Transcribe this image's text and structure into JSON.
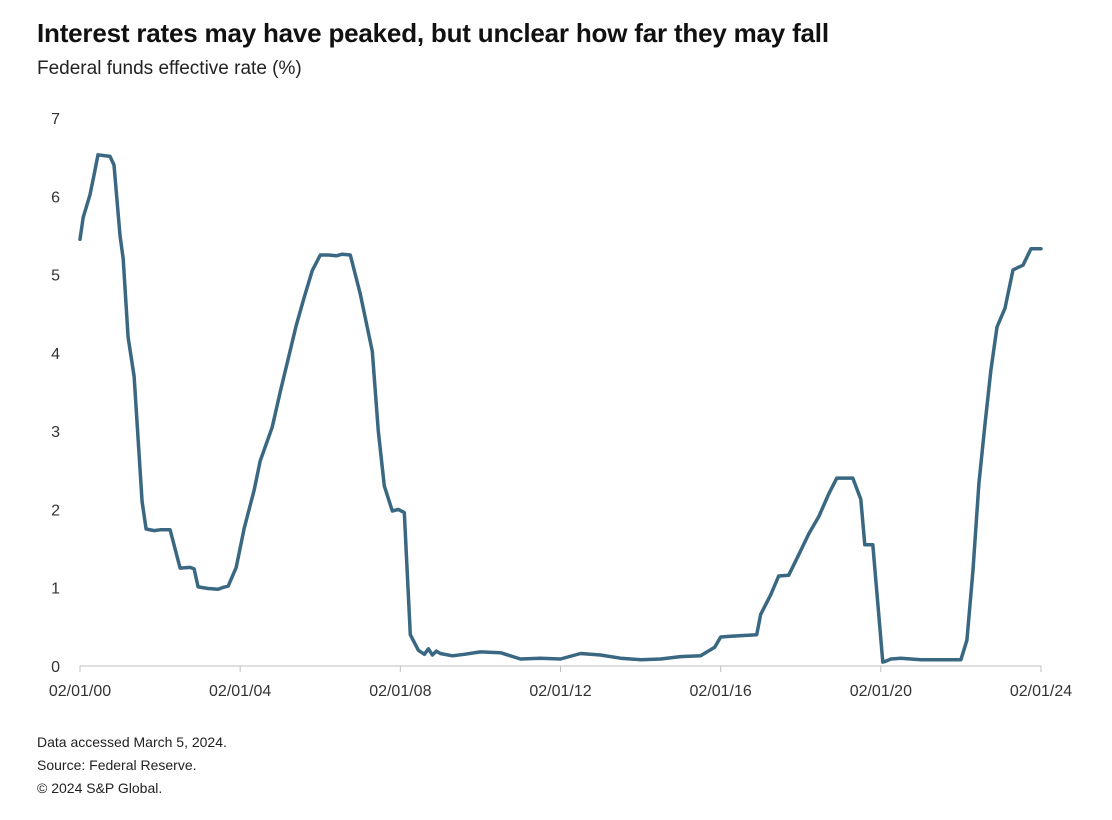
{
  "chart_data": {
    "type": "line",
    "title": "Interest rates may have peaked, but unclear how far they may fall",
    "subtitle": "Federal funds effective rate (%)",
    "xlabel": "",
    "ylabel": "Federal funds effective rate (%)",
    "ylim": [
      0,
      7
    ],
    "xlim": [
      2000.0,
      2024.0
    ],
    "yticks": [
      "0",
      "1",
      "2",
      "3",
      "4",
      "5",
      "6",
      "7"
    ],
    "xticks": [
      {
        "x": 2000.0,
        "label": "02/01/00"
      },
      {
        "x": 2004.0,
        "label": "02/01/04"
      },
      {
        "x": 2008.0,
        "label": "02/01/08"
      },
      {
        "x": 2012.0,
        "label": "02/01/12"
      },
      {
        "x": 2016.0,
        "label": "02/01/16"
      },
      {
        "x": 2020.0,
        "label": "02/01/20"
      },
      {
        "x": 2024.0,
        "label": "02/01/24"
      }
    ],
    "line_color": "#3a6882",
    "series": [
      {
        "name": "Federal funds effective rate",
        "x": [
          2000.0,
          2000.08,
          2000.25,
          2000.35,
          2000.45,
          2000.6,
          2000.75,
          2000.85,
          2001.0,
          2001.08,
          2001.2,
          2001.35,
          2001.55,
          2001.65,
          2001.85,
          2002.0,
          2002.25,
          2002.5,
          2002.75,
          2002.85,
          2002.95,
          2003.2,
          2003.45,
          2003.55,
          2003.7,
          2003.9,
          2004.1,
          2004.35,
          2004.5,
          2004.8,
          2005.0,
          2005.25,
          2005.4,
          2005.6,
          2005.8,
          2006.0,
          2006.2,
          2006.4,
          2006.55,
          2006.75,
          2007.0,
          2007.3,
          2007.45,
          2007.6,
          2007.8,
          2007.95,
          2008.1,
          2008.25,
          2008.45,
          2008.6,
          2008.7,
          2008.8,
          2008.9,
          2009.0,
          2009.3,
          2009.6,
          2010.0,
          2010.5,
          2011.0,
          2011.5,
          2012.0,
          2012.5,
          2013.0,
          2013.5,
          2014.0,
          2014.5,
          2015.0,
          2015.5,
          2015.85,
          2016.0,
          2016.25,
          2016.9,
          2017.0,
          2017.25,
          2017.45,
          2017.7,
          2017.95,
          2018.2,
          2018.45,
          2018.7,
          2018.9,
          2019.3,
          2019.5,
          2019.6,
          2019.8,
          2019.95,
          2020.05,
          2020.12,
          2020.25,
          2020.5,
          2021.0,
          2021.5,
          2022.0,
          2022.15,
          2022.3,
          2022.45,
          2022.6,
          2022.75,
          2022.9,
          2023.1,
          2023.3,
          2023.55,
          2023.75,
          2024.0
        ],
        "values": [
          5.45,
          5.73,
          6.02,
          6.27,
          6.53,
          6.52,
          6.51,
          6.4,
          5.5,
          5.2,
          4.2,
          3.7,
          2.1,
          1.75,
          1.73,
          1.74,
          1.74,
          1.25,
          1.26,
          1.24,
          1.01,
          0.99,
          0.98,
          1.0,
          1.02,
          1.26,
          1.76,
          2.25,
          2.62,
          3.05,
          3.5,
          4.03,
          4.35,
          4.71,
          5.05,
          5.25,
          5.25,
          5.24,
          5.26,
          5.25,
          4.75,
          4.02,
          3.0,
          2.3,
          1.98,
          2.0,
          1.96,
          0.4,
          0.2,
          0.15,
          0.22,
          0.14,
          0.19,
          0.16,
          0.13,
          0.15,
          0.18,
          0.17,
          0.09,
          0.1,
          0.09,
          0.16,
          0.14,
          0.1,
          0.08,
          0.09,
          0.12,
          0.13,
          0.24,
          0.37,
          0.38,
          0.4,
          0.66,
          0.91,
          1.15,
          1.16,
          1.42,
          1.69,
          1.91,
          2.2,
          2.4,
          2.4,
          2.13,
          1.55,
          1.55,
          0.65,
          0.05,
          0.06,
          0.09,
          0.1,
          0.08,
          0.08,
          0.08,
          0.33,
          1.21,
          2.33,
          3.08,
          3.78,
          4.33,
          4.57,
          5.06,
          5.12,
          5.33,
          5.33
        ]
      }
    ]
  },
  "footnotes": {
    "accessed": "Data accessed March 5, 2024.",
    "source": "Source: Federal Reserve.",
    "copyright": "© 2024 S&P Global."
  }
}
